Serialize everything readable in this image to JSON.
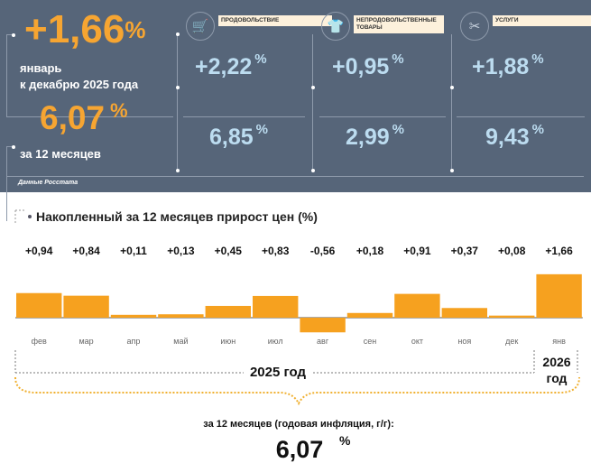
{
  "summary": {
    "monthly_value": "+1,66",
    "percent": "%",
    "monthly_caption_1": "январь",
    "monthly_caption_2": "к декабрю 2025 года",
    "annual_value": "6,07",
    "annual_caption": "за 12 месяцев",
    "source": "Данные Росстата"
  },
  "categories": [
    {
      "label": "ПРОДОВОЛЬСТВИЕ",
      "icon": "shopping-cart-icon",
      "monthly": "+2,22",
      "annual": "6,85"
    },
    {
      "label": "НЕПРОДОВОЛЬСТВЕННЫЕ ТОВАРЫ",
      "icon": "clothing-icon",
      "monthly": "+0,95",
      "annual": "2,99"
    },
    {
      "label": "УСЛУГИ",
      "icon": "scissors-icon",
      "monthly": "+1,88",
      "annual": "9,43"
    }
  ],
  "chart_data": {
    "type": "bar",
    "title": "Накопленный за 12 месяцев прирост цен (%)",
    "categories": [
      "фев",
      "мар",
      "апр",
      "май",
      "июн",
      "июл",
      "авг",
      "сен",
      "окт",
      "ноя",
      "дек",
      "янв"
    ],
    "values": [
      0.94,
      0.84,
      0.11,
      0.13,
      0.45,
      0.83,
      -0.56,
      0.18,
      0.91,
      0.37,
      0.08,
      1.66
    ],
    "value_labels": [
      "+0,94",
      "+0,84",
      "+0,11",
      "+0,13",
      "+0,45",
      "+0,83",
      "-0,56",
      "+0,18",
      "+0,91",
      "+0,37",
      "+0,08",
      "+1,66"
    ],
    "color": "#f6a11f",
    "year_2025": "2025 год",
    "year_2026_1": "2026",
    "year_2026_2": "год",
    "annual_caption": "за 12 месяцев (годовая инфляция, г/г):",
    "annual_value": "6,07",
    "percent": "%"
  }
}
